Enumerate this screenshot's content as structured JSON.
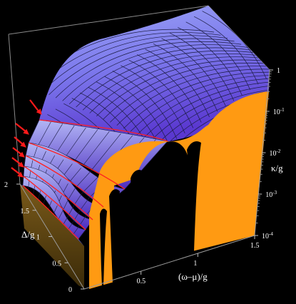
{
  "chart_data": {
    "type": "surface3d",
    "axes": {
      "x": {
        "label": "(ω–μ)/g",
        "range": [
          0,
          1.5
        ],
        "ticks": [
          {
            "value": 0.5,
            "label": "0.5"
          },
          {
            "value": 1,
            "label": "1"
          },
          {
            "value": 1.5,
            "label": "1.5"
          }
        ]
      },
      "y": {
        "label": "Δ/g",
        "range": [
          0,
          2
        ],
        "ticks": [
          {
            "value": 0,
            "label": "0"
          },
          {
            "value": 0.5,
            "label": "0.5"
          },
          {
            "value": 1,
            "label": "1"
          },
          {
            "value": 1.5,
            "label": "1.5"
          },
          {
            "value": 2,
            "label": "2"
          }
        ]
      },
      "z": {
        "label": "κ/g",
        "scale": "log",
        "range": [
          0.0001,
          1
        ],
        "ticks": [
          {
            "value": 1,
            "label": "1",
            "base": "",
            "exp": ""
          },
          {
            "value": 0.1,
            "label": "10-1",
            "base": "10",
            "exp": "-1"
          },
          {
            "value": 0.01,
            "label": "10-2",
            "base": "10",
            "exp": "-2"
          },
          {
            "value": 0.001,
            "label": "10-3",
            "base": "10",
            "exp": "-3"
          },
          {
            "value": 0.0001,
            "label": "10-4",
            "base": "10",
            "exp": "-4"
          }
        ]
      }
    },
    "colors": {
      "surface_top": "#8f9af2",
      "surface_dark": "#5b3fd6",
      "cut_face": "#ff9a12",
      "mesh": "#1a1a40",
      "resonance_lines": "#ff2020",
      "arrows": "#ff1a1a",
      "background": "#000000",
      "box": "#9a9a9a"
    },
    "resonance_arrows": 6,
    "grid": false,
    "legend": "none"
  }
}
